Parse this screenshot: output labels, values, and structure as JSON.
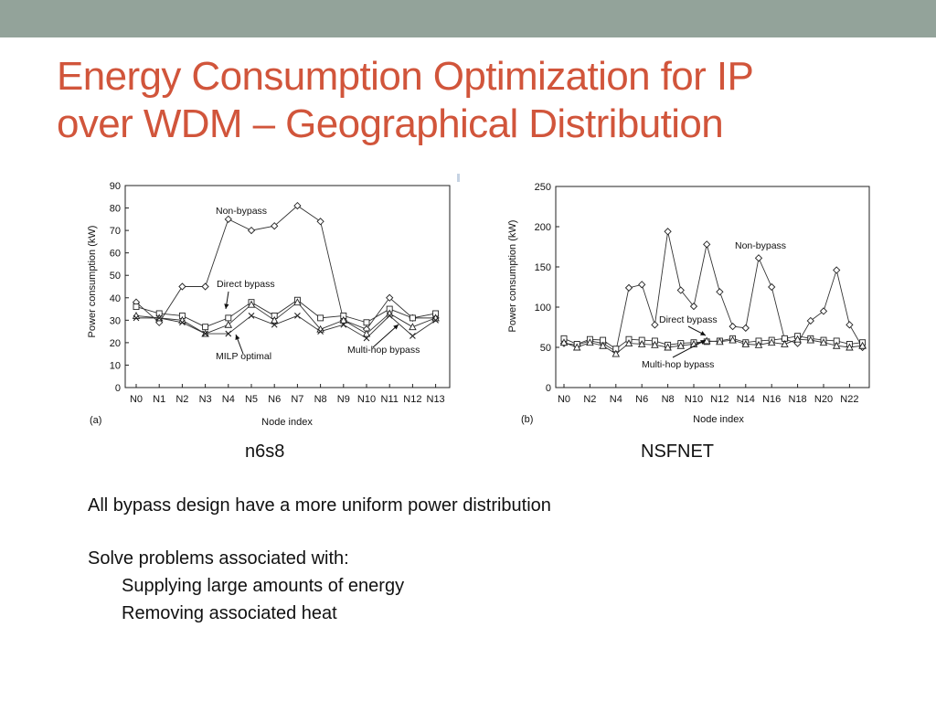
{
  "slide": {
    "title_line1": "Energy Consumption Optimization for IP",
    "title_line2": "over WDM – Geographical Distribution",
    "caption_left": "n6s8",
    "caption_right": "NSFNET",
    "text1": "All bypass design have a more uniform power distribution",
    "text2": "Solve problems associated with:",
    "text3": "Supplying large amounts of energy",
    "text4": "Removing associated heat",
    "colors": {
      "title": "#d1553b",
      "band": "#93a39a"
    }
  },
  "chart_data": [
    {
      "type": "line",
      "panel_label": "(a)",
      "xlabel": "Node index",
      "ylabel": "Power consumption (kW)",
      "ylim": [
        0,
        90
      ],
      "yticks": [
        0,
        10,
        20,
        30,
        40,
        50,
        60,
        70,
        80,
        90
      ],
      "categories": [
        "N0",
        "N1",
        "N2",
        "N3",
        "N4",
        "N5",
        "N6",
        "N7",
        "N8",
        "N9",
        "N10",
        "N11",
        "N12",
        "N13"
      ],
      "series": [
        {
          "name": "Non-bypass",
          "marker": "diamond",
          "values": [
            38,
            29,
            45,
            45,
            75,
            70,
            72,
            81,
            74,
            30,
            26,
            40,
            31,
            31
          ]
        },
        {
          "name": "Direct bypass",
          "marker": "square",
          "values": [
            36,
            33,
            32,
            27,
            31,
            38,
            32,
            39,
            31,
            32,
            29,
            35,
            31,
            33
          ]
        },
        {
          "name": "",
          "marker": "triangle",
          "values": [
            32,
            31,
            30,
            24,
            28,
            37,
            30,
            38,
            26,
            30,
            24,
            33,
            27,
            31
          ]
        },
        {
          "name": "MILP optimal",
          "marker": "x",
          "values": [
            31,
            31,
            29,
            24,
            24,
            32,
            28,
            32,
            25,
            28,
            22,
            32,
            23,
            30
          ]
        }
      ],
      "annotations": [
        "Non-bypass",
        "Direct bypass",
        "MILP optimal",
        "Multi-hop bypass"
      ]
    },
    {
      "type": "line",
      "panel_label": "(b)",
      "xlabel": "Node index",
      "ylabel": "Power consumption (kW)",
      "ylim": [
        0,
        250
      ],
      "yticks": [
        0,
        50,
        100,
        150,
        200,
        250
      ],
      "x": [
        0,
        1,
        2,
        3,
        4,
        5,
        6,
        7,
        8,
        9,
        10,
        11,
        12,
        13,
        14,
        15,
        16,
        17,
        18,
        19,
        20,
        21,
        22,
        23
      ],
      "xticklabels": [
        "N0",
        "N2",
        "N4",
        "N6",
        "N8",
        "N10",
        "N12",
        "N14",
        "N16",
        "N18",
        "N20",
        "N22"
      ],
      "series": [
        {
          "name": "Non-bypass",
          "marker": "diamond",
          "values": [
            55,
            53,
            58,
            55,
            45,
            124,
            128,
            78,
            194,
            121,
            101,
            178,
            119,
            76,
            74,
            161,
            125,
            60,
            55,
            83,
            95,
            146,
            78,
            50
          ]
        },
        {
          "name": "Direct bypass",
          "marker": "square",
          "values": [
            61,
            54,
            60,
            59,
            48,
            60,
            59,
            58,
            53,
            55,
            56,
            57,
            58,
            61,
            56,
            58,
            59,
            61,
            64,
            61,
            59,
            58,
            54,
            56
          ]
        },
        {
          "name": "Multi-hop bypass",
          "marker": "triangle",
          "values": [
            56,
            50,
            56,
            52,
            42,
            55,
            54,
            53,
            50,
            52,
            54,
            58,
            57,
            59,
            54,
            53,
            56,
            54,
            60,
            59,
            56,
            52,
            50,
            52
          ]
        }
      ],
      "annotations": [
        "Non-bypass",
        "Direct bypass",
        "Multi-hop bypass"
      ]
    }
  ]
}
